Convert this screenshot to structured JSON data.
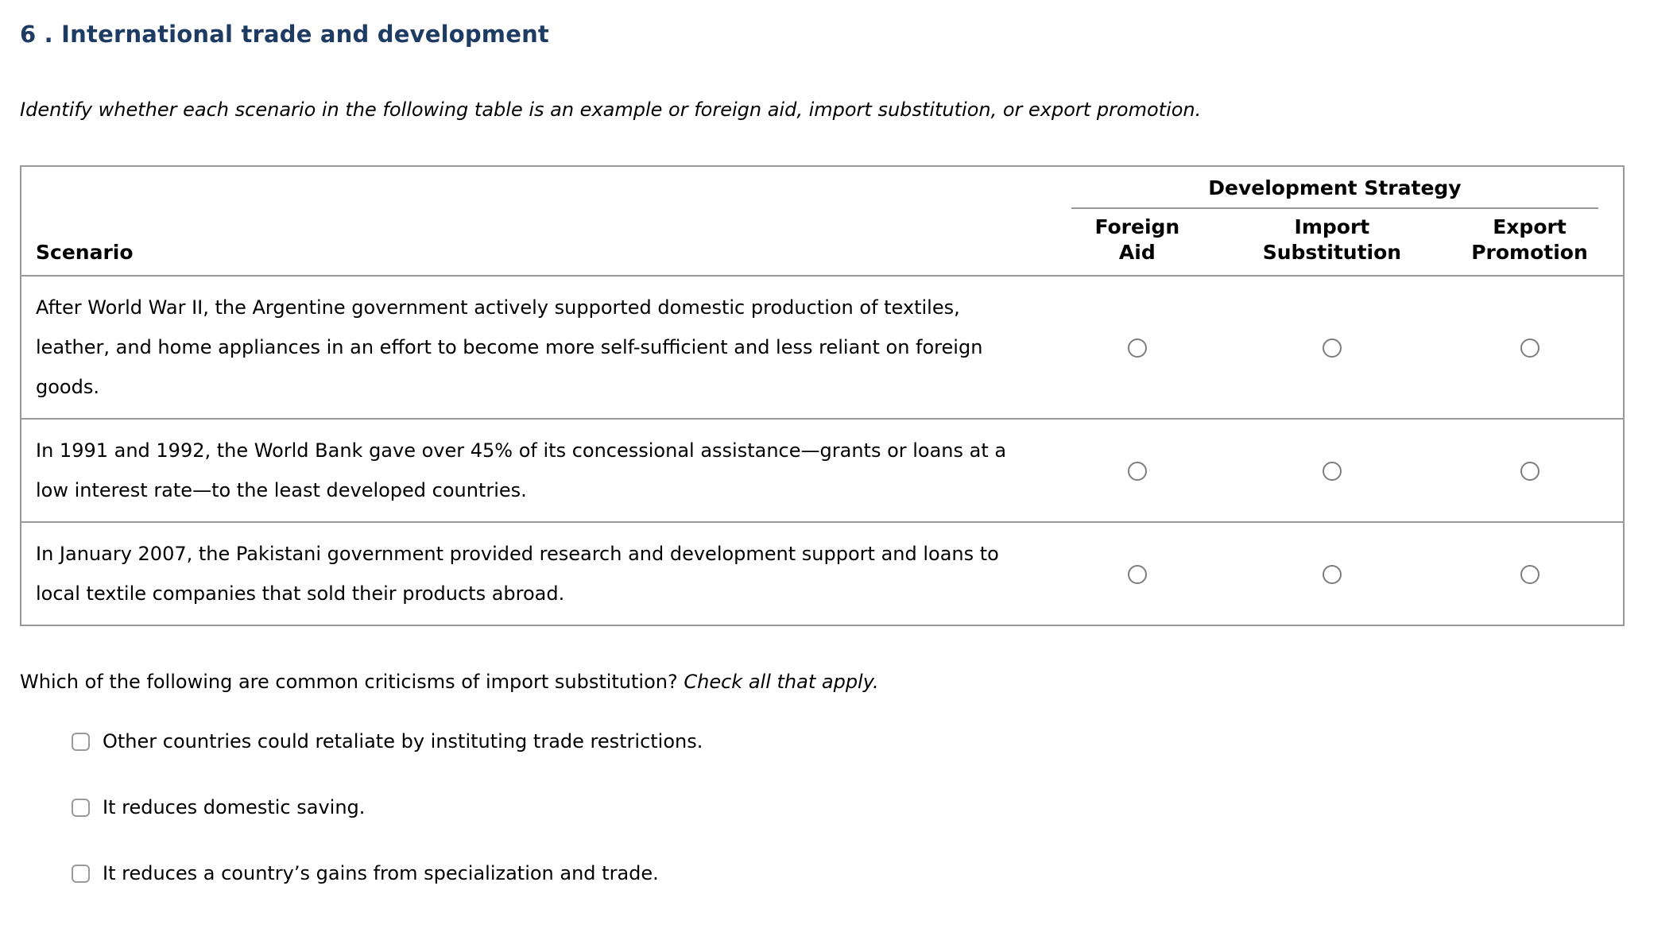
{
  "header": {
    "title": "6 . International trade and development"
  },
  "instruction": "Identify whether each scenario in the following table is an example or foreign aid, import substitution, or export promotion.",
  "table": {
    "scenario_header": "Scenario",
    "group_header": "Development Strategy",
    "columns": [
      {
        "line1": "Foreign",
        "line2": "Aid"
      },
      {
        "line1": "Import",
        "line2": "Substitution"
      },
      {
        "line1": "Export",
        "line2": "Promotion"
      }
    ],
    "rows": [
      {
        "scenario": "After World War II, the Argentine government actively supported domestic production of textiles, leather, and home appliances in an effort to become more self-sufficient and less reliant on foreign goods."
      },
      {
        "scenario": "In 1991 and 1992, the World Bank gave over 45% of its concessional assistance—grants or loans at a low interest rate—to the least developed countries."
      },
      {
        "scenario": "In January 2007, the Pakistani government provided research and development support and loans to local textile companies that sold their products abroad."
      }
    ]
  },
  "question": {
    "text": "Which of the following are common criticisms of import substitution?",
    "emphasis": "Check all that apply."
  },
  "options": [
    {
      "label": "Other countries could retaliate by instituting trade restrictions."
    },
    {
      "label": "It reduces domestic saving."
    },
    {
      "label": "It reduces a country’s gains from specialization and trade."
    }
  ],
  "colors": {
    "title": "#1d3b63",
    "table_border": "#999999",
    "control_border": "#7d7d7d"
  }
}
